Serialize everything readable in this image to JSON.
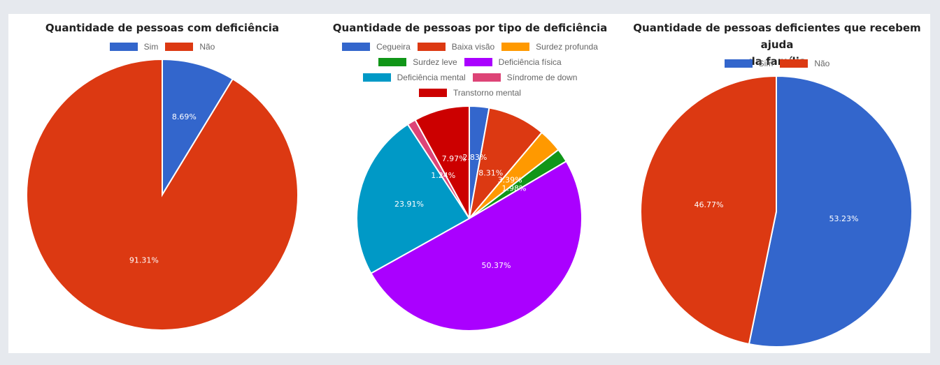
{
  "chart_data": [
    {
      "type": "pie",
      "title": "Quantidade de pessoas com deficiência",
      "categories": [
        "Sim",
        "Não"
      ],
      "values": [
        8.69,
        91.31
      ],
      "labels": [
        "8.69%",
        "91.31%"
      ],
      "colors": [
        "#3366cc",
        "#dc3912"
      ],
      "legend": "top"
    },
    {
      "type": "pie",
      "title": "Quantidade de pessoas por tipo de deficiência",
      "categories": [
        "Cegueira",
        "Baixa visão",
        "Surdez profunda",
        "Surdez leve",
        "Deficiência física",
        "Deficiência mental",
        "Síndrome de down",
        "Transtorno mental"
      ],
      "values": [
        2.83,
        8.31,
        3.39,
        1.98,
        50.37,
        23.91,
        1.24,
        7.97
      ],
      "labels": [
        "2.83%",
        "8.31%",
        "3.39%",
        "1.98%",
        "50.37%",
        "23.91%",
        "1.24%",
        "7.97%"
      ],
      "colors": [
        "#3366cc",
        "#dc3912",
        "#ff9900",
        "#109618",
        "#aa00ff",
        "#0099c6",
        "#dd4477",
        "#cc0000"
      ],
      "legend_rows": [
        [
          0,
          1,
          2
        ],
        [
          3,
          4
        ],
        [
          5,
          6
        ],
        [
          7
        ]
      ],
      "legend": "top"
    },
    {
      "type": "pie",
      "title": "Quantidade de pessoas deficientes que recebem ajuda da família",
      "title_lines": [
        "Quantidade de pessoas deficientes que recebem ajuda",
        "da família"
      ],
      "categories": [
        "Sim",
        "Não"
      ],
      "values": [
        53.23,
        46.77
      ],
      "labels": [
        "53.23%",
        "46.77%"
      ],
      "colors": [
        "#3366cc",
        "#dc3912"
      ],
      "legend": "top"
    }
  ]
}
